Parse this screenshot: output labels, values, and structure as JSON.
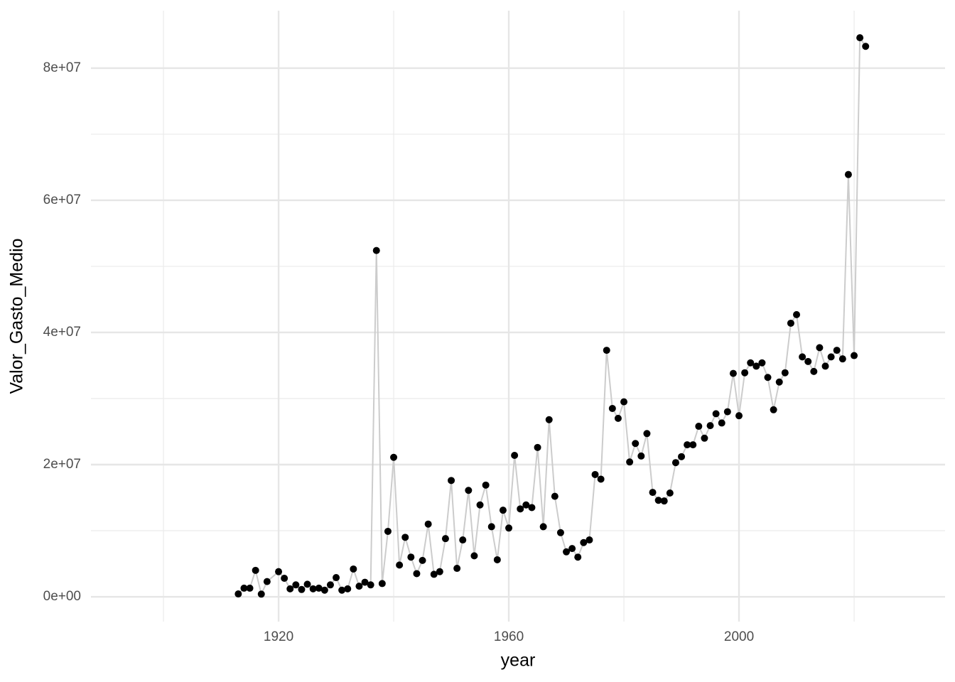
{
  "chart_data": {
    "type": "line",
    "x_label": "year",
    "y_label": "Valor_Gasto_Medio",
    "xlim": [
      1887.4,
      2035.8
    ],
    "ylim": [
      -3760000,
      88700000
    ],
    "xticks": [
      1920,
      1960,
      2000
    ],
    "yticks": [
      {
        "value": 0,
        "label": "0e+00"
      },
      {
        "value": 20000000,
        "label": "2e+07"
      },
      {
        "value": 40000000,
        "label": "4e+07"
      },
      {
        "value": 60000000,
        "label": "6e+07"
      },
      {
        "value": 80000000,
        "label": "8e+07"
      }
    ],
    "x_minor_grid": [
      1900,
      1940,
      1980,
      2020
    ],
    "y_minor_grid": [
      10000000,
      30000000,
      50000000,
      70000000
    ],
    "grid": true,
    "line_color": "#cccccc",
    "point_color": "#000000",
    "x": [
      1913,
      1914,
      1915,
      1916,
      1917,
      1918,
      1920,
      1921,
      1922,
      1923,
      1924,
      1925,
      1926,
      1927,
      1928,
      1929,
      1930,
      1931,
      1932,
      1933,
      1934,
      1935,
      1936,
      1937,
      1938,
      1939,
      1940,
      1941,
      1942,
      1943,
      1944,
      1945,
      1946,
      1947,
      1948,
      1949,
      1950,
      1951,
      1952,
      1953,
      1954,
      1955,
      1956,
      1957,
      1958,
      1959,
      1960,
      1961,
      1962,
      1963,
      1964,
      1965,
      1966,
      1967,
      1968,
      1969,
      1970,
      1971,
      1972,
      1973,
      1974,
      1975,
      1976,
      1977,
      1978,
      1979,
      1980,
      1981,
      1982,
      1983,
      1984,
      1985,
      1986,
      1987,
      1988,
      1989,
      1990,
      1991,
      1992,
      1993,
      1994,
      1995,
      1996,
      1997,
      1998,
      1999,
      2000,
      2001,
      2002,
      2003,
      2004,
      2005,
      2006,
      2007,
      2008,
      2009,
      2010,
      2011,
      2012,
      2013,
      2014,
      2015,
      2016,
      2017,
      2018,
      2019,
      2020,
      2021,
      2022
    ],
    "values": [
      430000,
      1300000,
      1300000,
      4000000,
      400000,
      2300000,
      3800000,
      2800000,
      1200000,
      1800000,
      1100000,
      1900000,
      1200000,
      1300000,
      1000000,
      1800000,
      2900000,
      1000000,
      1200000,
      4200000,
      1600000,
      2200000,
      1800000,
      52400000,
      2000000,
      9900000,
      21100000,
      4800000,
      9000000,
      6000000,
      3500000,
      5500000,
      11000000,
      3400000,
      3800000,
      8800000,
      17600000,
      4300000,
      8600000,
      16100000,
      6200000,
      13900000,
      16900000,
      10600000,
      5600000,
      13100000,
      10400000,
      21400000,
      13300000,
      13900000,
      13500000,
      22600000,
      10600000,
      26800000,
      15200000,
      9700000,
      6800000,
      7300000,
      6000000,
      8200000,
      8600000,
      18500000,
      17800000,
      37300000,
      28500000,
      27000000,
      29500000,
      20400000,
      23200000,
      21300000,
      24700000,
      15800000,
      14600000,
      14500000,
      15700000,
      20300000,
      21200000,
      23000000,
      23000000,
      25800000,
      24000000,
      25900000,
      27700000,
      26300000,
      28000000,
      33800000,
      27400000,
      33900000,
      35400000,
      34900000,
      35400000,
      33200000,
      28300000,
      32500000,
      33900000,
      41400000,
      42700000,
      36300000,
      35600000,
      34100000,
      37700000,
      34900000,
      36300000,
      37300000,
      36000000,
      63900000,
      36500000,
      84600000,
      83300000
    ]
  }
}
